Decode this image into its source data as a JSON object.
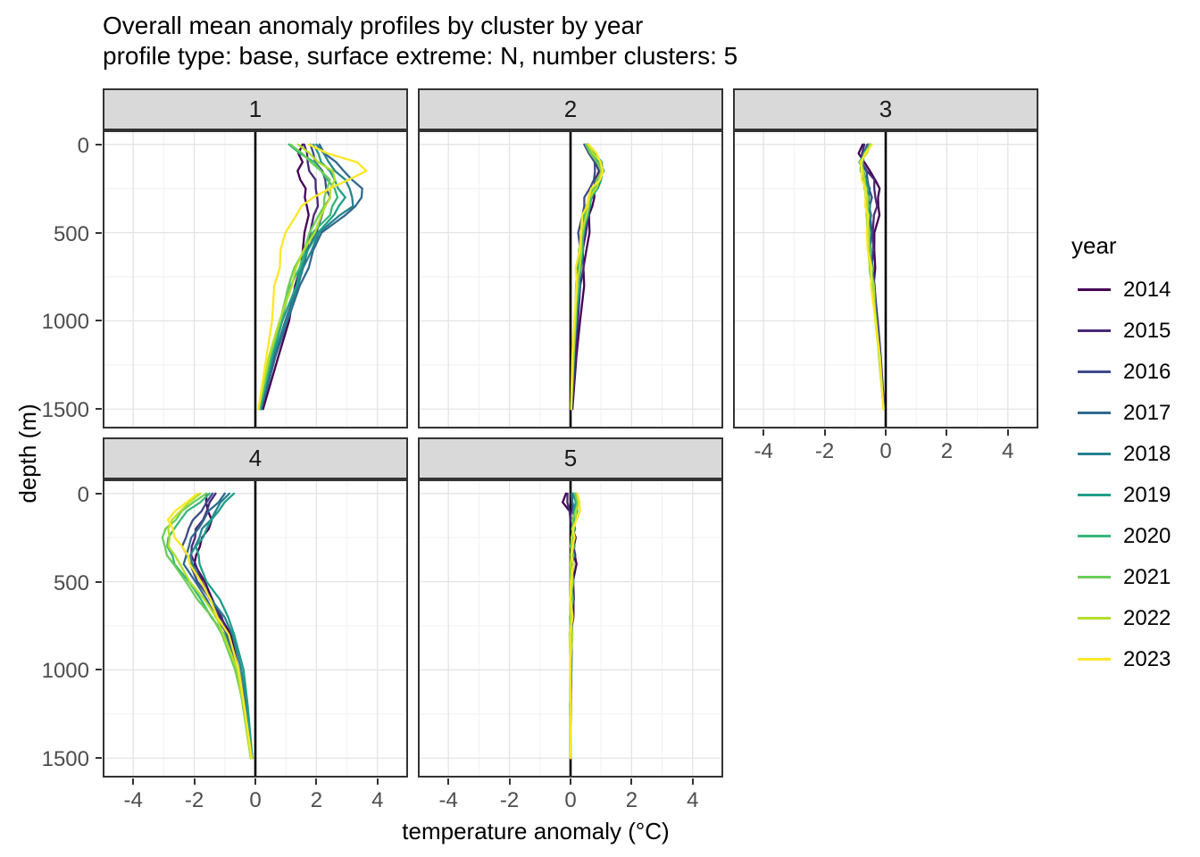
{
  "header": {
    "title": "Overall mean anomaly profiles by cluster by year",
    "subtitle": "profile type: base, surface extreme: N, number clusters: 5"
  },
  "chart_data": {
    "type": "line",
    "title": "Overall mean anomaly profiles by cluster by year",
    "subtitle": "profile type: base, surface extreme: N, number clusters: 5",
    "xlabel": "temperature anomaly (°C)",
    "ylabel": "depth (m)",
    "legend_title": "year",
    "legend_position": "right",
    "grid": true,
    "y_axis_reversed": true,
    "xlim": [
      -5,
      5
    ],
    "depth_lim": [
      -80,
      1610
    ],
    "x_ticks": [
      -4,
      -2,
      0,
      2,
      4
    ],
    "x_minor": [
      -3,
      -1,
      1,
      3
    ],
    "y_ticks": [
      0,
      500,
      1000,
      1500
    ],
    "y_minor": [
      250,
      750,
      1250
    ],
    "reference_line_x": 0,
    "years": [
      "2014",
      "2015",
      "2016",
      "2017",
      "2018",
      "2019",
      "2020",
      "2021",
      "2022",
      "2023"
    ],
    "colors": {
      "2014": "#440154",
      "2015": "#482878",
      "2016": "#3E4A89",
      "2017": "#31688E",
      "2018": "#26828E",
      "2019": "#1F9E89",
      "2020": "#35B779",
      "2021": "#6DCD59",
      "2022": "#B4DE2C",
      "2023": "#FDE725"
    },
    "depths": [
      0,
      50,
      100,
      150,
      200,
      250,
      300,
      350,
      400,
      500,
      600,
      700,
      800,
      1000,
      1200,
      1500
    ],
    "facets": [
      {
        "label": "1",
        "series": {
          "2014": [
            1.55,
            1.45,
            1.5,
            1.4,
            1.5,
            1.6,
            1.65,
            1.7,
            1.7,
            1.65,
            1.55,
            1.45,
            1.35,
            1.1,
            0.75,
            0.25
          ],
          "2015": [
            1.6,
            1.65,
            1.72,
            1.8,
            1.92,
            2.0,
            2.05,
            2.0,
            1.95,
            1.8,
            1.65,
            1.5,
            1.35,
            1.0,
            0.65,
            0.2
          ],
          "2016": [
            1.8,
            1.9,
            2.0,
            2.15,
            2.3,
            2.35,
            2.4,
            2.3,
            2.2,
            1.95,
            1.75,
            1.55,
            1.35,
            1.0,
            0.6,
            0.2
          ],
          "2017": [
            2.1,
            2.3,
            2.6,
            2.9,
            3.2,
            3.45,
            3.5,
            3.3,
            2.9,
            2.2,
            1.9,
            1.7,
            1.5,
            1.05,
            0.65,
            0.2
          ],
          "2018": [
            2.0,
            2.2,
            2.4,
            2.65,
            2.9,
            3.1,
            3.2,
            3.15,
            2.8,
            2.1,
            1.8,
            1.6,
            1.4,
            1.0,
            0.6,
            0.15
          ],
          "2019": [
            1.9,
            2.05,
            2.2,
            2.4,
            2.6,
            2.75,
            2.9,
            2.75,
            2.6,
            2.0,
            1.75,
            1.5,
            1.3,
            0.9,
            0.55,
            0.15
          ],
          "2020": [
            1.1,
            1.5,
            1.9,
            2.15,
            2.4,
            2.55,
            2.7,
            2.55,
            2.4,
            1.9,
            1.65,
            1.4,
            1.2,
            0.85,
            0.5,
            0.15
          ],
          "2021": [
            1.15,
            1.5,
            1.8,
            2.2,
            2.4,
            2.35,
            2.3,
            2.2,
            2.1,
            1.8,
            1.55,
            1.3,
            1.1,
            0.8,
            0.5,
            0.1
          ],
          "2022": [
            1.4,
            1.75,
            2.1,
            2.5,
            2.6,
            2.5,
            2.4,
            2.3,
            2.2,
            1.9,
            1.6,
            1.35,
            1.15,
            0.8,
            0.45,
            0.1
          ],
          "2023": [
            1.75,
            2.4,
            3.3,
            3.62,
            3.1,
            2.4,
            1.9,
            1.55,
            1.3,
            1.0,
            0.85,
            0.75,
            0.65,
            0.55,
            0.35,
            0.1
          ]
        }
      },
      {
        "label": "2",
        "series": {
          "2014": [
            0.55,
            0.7,
            0.85,
            0.95,
            0.9,
            0.82,
            0.75,
            0.7,
            0.65,
            0.58,
            0.52,
            0.46,
            0.4,
            0.32,
            0.2,
            0.06
          ],
          "2015": [
            0.5,
            0.65,
            0.8,
            0.9,
            0.85,
            0.75,
            0.65,
            0.6,
            0.55,
            0.5,
            0.44,
            0.38,
            0.33,
            0.25,
            0.15,
            0.04
          ],
          "2016": [
            0.45,
            0.6,
            0.75,
            0.85,
            0.75,
            0.6,
            0.5,
            0.42,
            0.38,
            0.3,
            0.28,
            0.25,
            0.22,
            0.15,
            0.1,
            0.03
          ],
          "2017": [
            0.55,
            0.7,
            0.9,
            1.0,
            0.9,
            0.75,
            0.62,
            0.55,
            0.5,
            0.4,
            0.35,
            0.3,
            0.27,
            0.18,
            0.12,
            0.03
          ],
          "2018": [
            0.6,
            0.75,
            0.95,
            1.05,
            0.95,
            0.8,
            0.68,
            0.6,
            0.52,
            0.42,
            0.36,
            0.3,
            0.26,
            0.18,
            0.1,
            0.03
          ],
          "2019": [
            0.6,
            0.78,
            0.98,
            1.08,
            1.0,
            0.85,
            0.72,
            0.62,
            0.55,
            0.45,
            0.38,
            0.32,
            0.27,
            0.18,
            0.1,
            0.02
          ],
          "2020": [
            0.55,
            0.72,
            0.9,
            1.0,
            0.92,
            0.78,
            0.65,
            0.57,
            0.5,
            0.4,
            0.33,
            0.28,
            0.24,
            0.16,
            0.1,
            0.02
          ],
          "2021": [
            0.5,
            0.68,
            0.88,
            0.98,
            0.9,
            0.76,
            0.63,
            0.55,
            0.48,
            0.38,
            0.32,
            0.27,
            0.22,
            0.15,
            0.09,
            0.02
          ],
          "2022": [
            0.58,
            0.75,
            0.95,
            1.05,
            0.95,
            0.8,
            0.66,
            0.58,
            0.5,
            0.4,
            0.33,
            0.28,
            0.23,
            0.15,
            0.09,
            0.02
          ],
          "2023": [
            0.6,
            0.8,
            1.0,
            1.08,
            0.92,
            0.72,
            0.58,
            0.5,
            0.43,
            0.33,
            0.27,
            0.22,
            0.18,
            0.12,
            0.07,
            0.02
          ]
        }
      },
      {
        "label": "3",
        "series": {
          "2014": [
            -0.75,
            -0.85,
            -0.75,
            -0.5,
            -0.32,
            -0.25,
            -0.22,
            -0.23,
            -0.25,
            -0.33,
            -0.38,
            -0.38,
            -0.35,
            -0.27,
            -0.17,
            -0.05
          ],
          "2015": [
            -0.7,
            -0.82,
            -0.78,
            -0.58,
            -0.42,
            -0.35,
            -0.32,
            -0.33,
            -0.35,
            -0.42,
            -0.44,
            -0.42,
            -0.38,
            -0.28,
            -0.18,
            -0.05
          ],
          "2016": [
            -0.6,
            -0.72,
            -0.78,
            -0.68,
            -0.58,
            -0.52,
            -0.5,
            -0.5,
            -0.5,
            -0.5,
            -0.48,
            -0.44,
            -0.4,
            -0.3,
            -0.19,
            -0.06
          ],
          "2017": [
            -0.55,
            -0.68,
            -0.78,
            -0.72,
            -0.63,
            -0.57,
            -0.54,
            -0.53,
            -0.53,
            -0.53,
            -0.5,
            -0.46,
            -0.41,
            -0.3,
            -0.19,
            -0.06
          ],
          "2018": [
            -0.55,
            -0.7,
            -0.8,
            -0.74,
            -0.66,
            -0.6,
            -0.57,
            -0.56,
            -0.55,
            -0.55,
            -0.52,
            -0.47,
            -0.42,
            -0.31,
            -0.2,
            -0.06
          ],
          "2019": [
            -0.52,
            -0.68,
            -0.82,
            -0.76,
            -0.68,
            -0.62,
            -0.59,
            -0.58,
            -0.57,
            -0.56,
            -0.53,
            -0.48,
            -0.43,
            -0.31,
            -0.2,
            -0.07
          ],
          "2020": [
            -0.5,
            -0.66,
            -0.8,
            -0.76,
            -0.7,
            -0.64,
            -0.61,
            -0.59,
            -0.58,
            -0.57,
            -0.54,
            -0.49,
            -0.43,
            -0.32,
            -0.2,
            -0.07
          ],
          "2021": [
            -0.52,
            -0.68,
            -0.82,
            -0.78,
            -0.72,
            -0.66,
            -0.63,
            -0.61,
            -0.6,
            -0.58,
            -0.55,
            -0.5,
            -0.44,
            -0.32,
            -0.21,
            -0.07
          ],
          "2022": [
            -0.48,
            -0.64,
            -0.8,
            -0.77,
            -0.71,
            -0.66,
            -0.63,
            -0.61,
            -0.6,
            -0.59,
            -0.55,
            -0.5,
            -0.44,
            -0.33,
            -0.21,
            -0.07
          ],
          "2023": [
            -0.45,
            -0.62,
            -0.83,
            -0.8,
            -0.74,
            -0.69,
            -0.66,
            -0.63,
            -0.62,
            -0.6,
            -0.56,
            -0.51,
            -0.45,
            -0.33,
            -0.21,
            -0.08
          ]
        }
      },
      {
        "label": "4",
        "series": {
          "2014": [
            -1.6,
            -1.65,
            -1.5,
            -1.45,
            -1.55,
            -1.7,
            -1.85,
            -1.95,
            -1.95,
            -1.7,
            -1.4,
            -1.1,
            -0.85,
            -0.55,
            -0.35,
            -0.15
          ],
          "2015": [
            -1.3,
            -1.45,
            -1.6,
            -1.75,
            -1.9,
            -2.0,
            -2.1,
            -2.05,
            -2.0,
            -1.75,
            -1.45,
            -1.15,
            -0.9,
            -0.55,
            -0.35,
            -0.15
          ],
          "2016": [
            -1.4,
            -1.6,
            -1.8,
            -2.0,
            -2.2,
            -2.3,
            -2.35,
            -2.25,
            -2.15,
            -1.85,
            -1.5,
            -1.2,
            -0.9,
            -0.55,
            -0.35,
            -0.12
          ],
          "2017": [
            -1.0,
            -1.25,
            -1.5,
            -1.7,
            -1.9,
            -2.05,
            -2.2,
            -2.28,
            -2.3,
            -2.0,
            -1.6,
            -1.25,
            -0.95,
            -0.55,
            -0.35,
            -0.12
          ],
          "2018": [
            -0.85,
            -1.1,
            -1.3,
            -1.5,
            -1.7,
            -1.85,
            -2.0,
            -2.08,
            -2.1,
            -1.8,
            -1.4,
            -1.05,
            -0.75,
            -0.45,
            -0.3,
            -0.1
          ],
          "2019": [
            -0.7,
            -1.0,
            -1.25,
            -1.4,
            -1.6,
            -1.75,
            -1.9,
            -1.88,
            -1.85,
            -1.55,
            -1.2,
            -0.9,
            -0.65,
            -0.4,
            -0.25,
            -0.1
          ],
          "2020": [
            -1.5,
            -1.85,
            -2.2,
            -2.45,
            -2.7,
            -2.8,
            -2.9,
            -2.75,
            -2.6,
            -2.2,
            -1.8,
            -1.4,
            -1.05,
            -0.6,
            -0.4,
            -0.15
          ],
          "2021": [
            -1.6,
            -2.0,
            -2.4,
            -2.65,
            -2.9,
            -3.05,
            -3.0,
            -2.85,
            -2.7,
            -2.3,
            -1.85,
            -1.45,
            -1.1,
            -0.65,
            -0.4,
            -0.15
          ],
          "2022": [
            -1.8,
            -2.15,
            -2.5,
            -2.7,
            -2.85,
            -2.85,
            -2.8,
            -2.65,
            -2.5,
            -2.1,
            -1.7,
            -1.3,
            -1.0,
            -0.6,
            -0.4,
            -0.15
          ],
          "2023": [
            -1.9,
            -2.3,
            -2.6,
            -2.85,
            -2.75,
            -2.6,
            -2.4,
            -2.25,
            -2.1,
            -1.8,
            -1.5,
            -1.2,
            -0.9,
            -0.55,
            -0.35,
            -0.12
          ]
        }
      },
      {
        "label": "5",
        "series": {
          "2014": [
            -0.15,
            -0.22,
            -0.08,
            0.02,
            0.08,
            0.12,
            0.14,
            0.15,
            0.15,
            0.12,
            0.09,
            0.06,
            0.04,
            0.02,
            0.01,
            0.0
          ],
          "2015": [
            -0.1,
            -0.15,
            -0.02,
            0.05,
            0.08,
            0.1,
            0.11,
            0.11,
            0.1,
            0.09,
            0.07,
            0.05,
            0.03,
            0.02,
            0.01,
            0.0
          ],
          "2016": [
            0.02,
            0.06,
            0.1,
            0.12,
            0.1,
            0.09,
            0.08,
            0.07,
            0.07,
            0.05,
            0.04,
            0.03,
            0.02,
            0.01,
            0.01,
            0.0
          ],
          "2017": [
            0.06,
            0.1,
            0.14,
            0.12,
            0.1,
            0.09,
            0.08,
            0.07,
            0.06,
            0.05,
            0.04,
            0.03,
            0.02,
            0.01,
            0.0,
            0.0
          ],
          "2018": [
            0.08,
            0.14,
            0.16,
            0.13,
            0.1,
            0.08,
            0.07,
            0.06,
            0.05,
            0.04,
            0.03,
            0.02,
            0.02,
            0.01,
            0.0,
            0.0
          ],
          "2019": [
            0.1,
            0.16,
            0.15,
            0.12,
            0.09,
            0.07,
            0.06,
            0.05,
            0.05,
            0.04,
            0.03,
            0.02,
            0.01,
            0.01,
            0.0,
            0.0
          ],
          "2020": [
            0.18,
            0.24,
            0.18,
            0.12,
            0.08,
            0.06,
            0.05,
            0.04,
            0.04,
            0.03,
            0.02,
            0.01,
            0.01,
            0.0,
            0.0,
            0.0
          ],
          "2021": [
            0.14,
            0.2,
            0.16,
            0.1,
            0.07,
            0.05,
            0.04,
            0.04,
            0.03,
            0.02,
            0.02,
            0.01,
            0.01,
            0.0,
            0.0,
            0.0
          ],
          "2022": [
            0.22,
            0.28,
            0.22,
            0.14,
            0.1,
            0.07,
            0.05,
            0.04,
            0.03,
            0.02,
            0.02,
            0.01,
            0.01,
            0.0,
            0.0,
            0.0
          ],
          "2023": [
            0.22,
            0.33,
            0.28,
            0.18,
            0.12,
            0.09,
            0.07,
            0.06,
            0.05,
            0.03,
            0.02,
            0.02,
            0.01,
            0.0,
            0.0,
            0.0
          ]
        }
      }
    ]
  }
}
